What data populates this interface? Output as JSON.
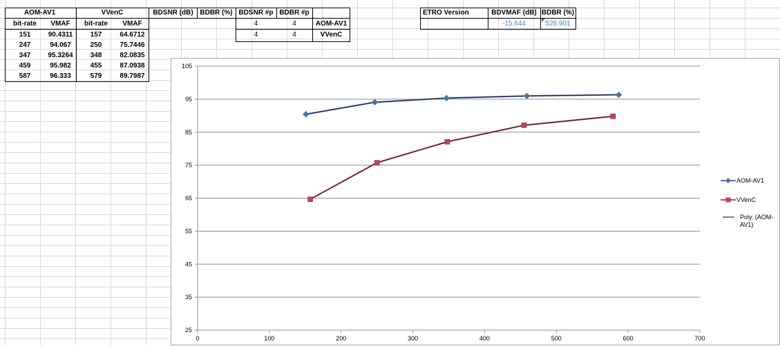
{
  "table": {
    "header_aom": "AOM-AV1",
    "header_vvenc": "VVenC",
    "col_bitrate": "bit-rate",
    "col_vmaf": "VMAF",
    "rows": [
      {
        "aom_br": "151",
        "aom_vmaf": "90.4311",
        "vv_br": "157",
        "vv_vmaf": "64.6712"
      },
      {
        "aom_br": "247",
        "aom_vmaf": "94.067",
        "vv_br": "250",
        "vv_vmaf": "75.7446"
      },
      {
        "aom_br": "347",
        "aom_vmaf": "95.3264",
        "vv_br": "348",
        "vv_vmaf": "82.0835"
      },
      {
        "aom_br": "459",
        "aom_vmaf": "95.982",
        "vv_br": "455",
        "vv_vmaf": "87.0938"
      },
      {
        "aom_br": "587",
        "aom_vmaf": "96.333",
        "vv_br": "579",
        "vv_vmaf": "89.7987"
      }
    ]
  },
  "metrics": {
    "bdsnr_db": "BDSNR (dB)",
    "bdbr_pct": "BDBR (%)",
    "bdsnr_p": "BDSNR #p",
    "bdbr_p": "BDBR #p",
    "row1": {
      "bdsnr_p": "4",
      "bdbr_p": "4",
      "label": "AOM-AV1"
    },
    "row2": {
      "bdsnr_p": "4",
      "bdbr_p": "4",
      "label": "VVenC"
    }
  },
  "etro": {
    "version_label": "ETRO Version",
    "bdvmaf_label": "BDVMAF (dB)",
    "bdbr_label": "BDBR (%)",
    "bdvmaf_value": "-15.644",
    "bdbr_value": "528.901"
  },
  "chart_data": {
    "type": "scatter",
    "x_ticks": [
      "0",
      "100",
      "200",
      "300",
      "400",
      "500",
      "600",
      "700"
    ],
    "y_ticks": [
      "25",
      "35",
      "45",
      "55",
      "65",
      "75",
      "85",
      "95",
      "105"
    ],
    "xlim": [
      0,
      700
    ],
    "ylim": [
      25,
      105
    ],
    "grid": "horizontal",
    "legend_position": "right",
    "series": [
      {
        "name": "AOM-AV1",
        "color": "#4f6fa8",
        "marker": "diamond",
        "x": [
          151,
          247,
          347,
          459,
          587
        ],
        "y": [
          90.4311,
          94.067,
          95.3264,
          95.982,
          96.333
        ]
      },
      {
        "name": "VVenC",
        "color": "#b8475a",
        "marker": "square",
        "x": [
          157,
          250,
          348,
          455,
          579
        ],
        "y": [
          64.6712,
          75.7446,
          82.0835,
          87.0938,
          89.7987
        ]
      }
    ],
    "trendlines": [
      {
        "name_line1": "Poly. (AOM-",
        "name_line2": "AV1)",
        "color": "#000000"
      }
    ]
  }
}
